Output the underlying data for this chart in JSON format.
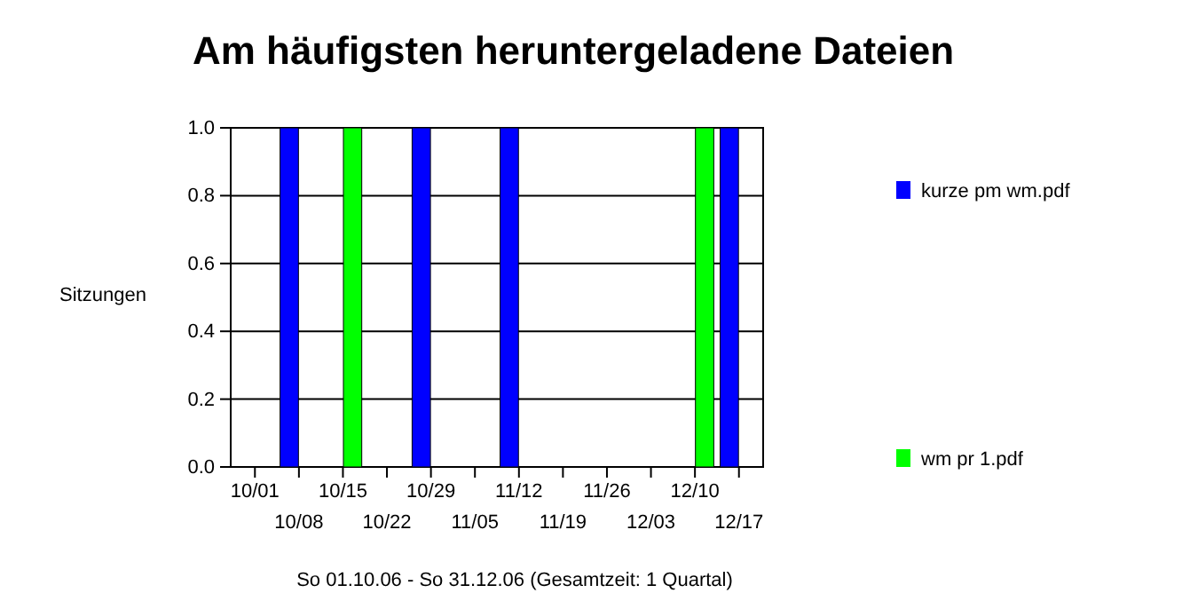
{
  "chart_data": {
    "type": "bar",
    "title": "Am häufigsten heruntergeladene Dateien",
    "ylabel": "Sitzungen",
    "xlabel": "So 01.10.06 - So 31.12.06 (Gesamtzeit: 1 Quartal)",
    "categories": [
      "10/01",
      "10/08",
      "10/15",
      "10/22",
      "10/29",
      "11/05",
      "11/12",
      "11/19",
      "11/26",
      "12/03",
      "12/10",
      "12/17"
    ],
    "series": [
      {
        "name": "kurze pm wm.pdf",
        "color": "#0000ff",
        "values": [
          0,
          1,
          0,
          0,
          1,
          0,
          1,
          0,
          0,
          0,
          0,
          1
        ]
      },
      {
        "name": "wm pr 1.pdf",
        "color": "#00ff00",
        "values": [
          0,
          0,
          1,
          0,
          0,
          0,
          0,
          0,
          0,
          0,
          1,
          0
        ]
      }
    ],
    "ylim": [
      0,
      1
    ],
    "yticks": [
      {
        "value": 0,
        "label": "0.0"
      },
      {
        "value": 0.2,
        "label": "0.2"
      },
      {
        "value": 0.4,
        "label": "0.4"
      },
      {
        "value": 0.6,
        "label": "0.6"
      },
      {
        "value": 0.8,
        "label": "0.8"
      },
      {
        "value": 1,
        "label": "1.0"
      }
    ],
    "grid": "y",
    "legend": "right"
  }
}
